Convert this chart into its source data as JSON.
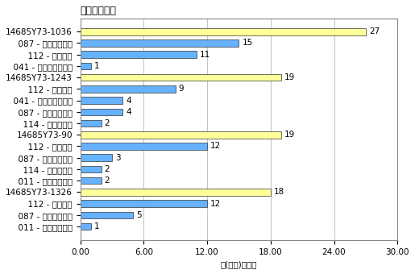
{
  "title": "序列号：代码",
  "xlabel": "总(点数)百分比",
  "xlim": [
    0,
    30
  ],
  "xticks": [
    0,
    6,
    12,
    18,
    24,
    30
  ],
  "xtick_labels": [
    "0.00",
    "6.00",
    "12.00",
    "18.00",
    "24.00",
    "30.00"
  ],
  "groups": [
    {
      "label": "14685Y73-1036",
      "value": 27,
      "color": "#FFFF99",
      "is_header": true
    },
    {
      "label": "  087 - 不正确的扭矩",
      "value": 15,
      "color": "#66B2FF",
      "is_header": false
    },
    {
      "label": "  112 - 油漆污点",
      "value": 11,
      "color": "#66B2FF",
      "is_header": false
    },
    {
      "label": "  041 - 调温器控图堵塞",
      "value": 1,
      "color": "#66B2FF",
      "is_header": false
    },
    {
      "label": "14685Y73-1243",
      "value": 19,
      "color": "#FFFF99",
      "is_header": true
    },
    {
      "label": "  112 - 油漆污点",
      "value": 9,
      "color": "#66B2FF",
      "is_header": false
    },
    {
      "label": "  041 - 调温器控图堵塞",
      "value": 4,
      "color": "#66B2FF",
      "is_header": false
    },
    {
      "label": "  087 - 不正确的扭矩",
      "value": 4,
      "color": "#66B2FF",
      "is_header": false
    },
    {
      "label": "  114 - 过滤器错误",
      "value": 2,
      "color": "#66B2FF",
      "is_header": false
    },
    {
      "label": "14685Y73-90",
      "value": 19,
      "color": "#FFFF99",
      "is_header": true
    },
    {
      "label": "  112 - 油漆污点",
      "value": 12,
      "color": "#66B2FF",
      "is_header": false
    },
    {
      "label": "  087 - 不正确的扭矩",
      "value": 3,
      "color": "#66B2FF",
      "is_header": false
    },
    {
      "label": "  114 - 过滤器错误",
      "value": 2,
      "color": "#66B2FF",
      "is_header": false
    },
    {
      "label": "  011 - 红头垫圈雨液",
      "value": 2,
      "color": "#66B2FF",
      "is_header": false
    },
    {
      "label": "14685Y73-1326",
      "value": 18,
      "color": "#FFFF99",
      "is_header": true
    },
    {
      "label": "  112 - 油漆污点",
      "value": 12,
      "color": "#66B2FF",
      "is_header": false
    },
    {
      "label": "  087 - 不正确的扭矩",
      "value": 5,
      "color": "#66B2FF",
      "is_header": false
    },
    {
      "label": "  011 - 红头垫圈雨液",
      "value": 1,
      "color": "#66B2FF",
      "is_header": false
    }
  ],
  "bg_color": "#FFFFFF",
  "plot_bg_color": "#FFFFFF",
  "grid_color": "#AAAAAA",
  "bar_height": 0.6,
  "title_fontsize": 9,
  "label_fontsize": 7.5,
  "tick_fontsize": 7.5,
  "value_fontsize": 7.5
}
